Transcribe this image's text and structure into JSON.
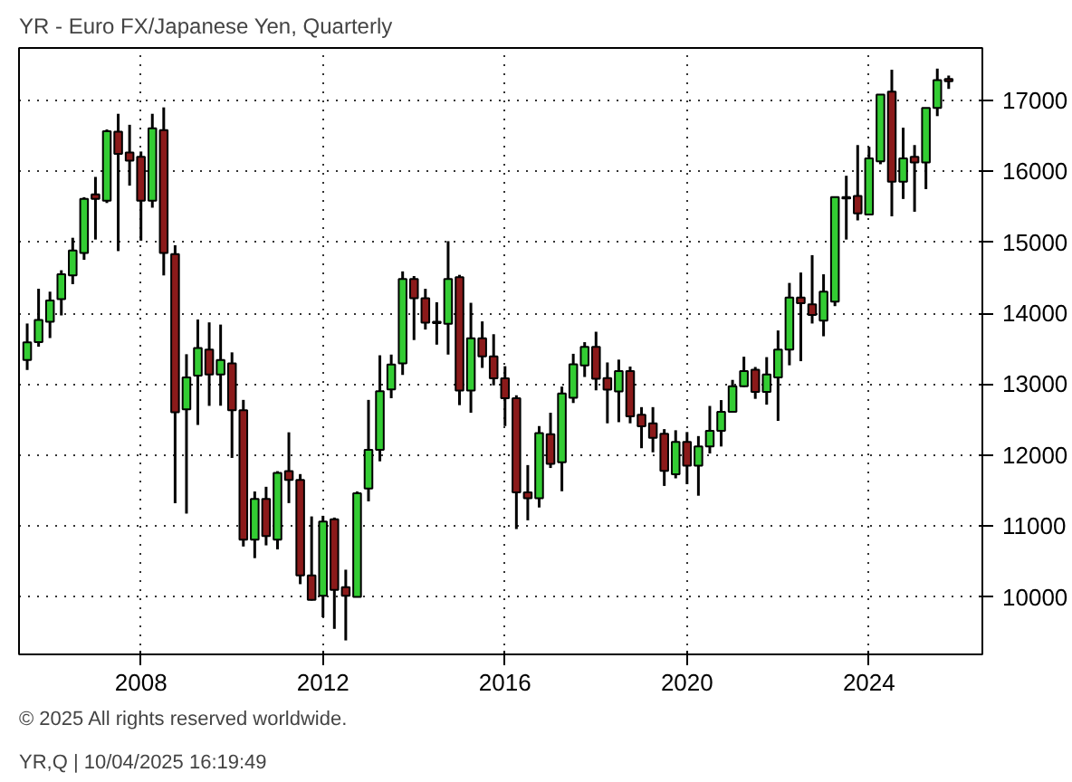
{
  "chart_data": {
    "type": "candlestick",
    "title": "YR - Euro FX/Japanese Yen, Quarterly",
    "annotations": [
      "© 2025 All rights reserved worldwide.",
      "YR,Q | 10/04/2025 16:19:49"
    ],
    "x": [
      2005.5,
      2005.75,
      2006,
      2006.25,
      2006.5,
      2006.75,
      2007,
      2007.25,
      2007.5,
      2007.75,
      2008,
      2008.25,
      2008.5,
      2008.75,
      2009,
      2009.25,
      2009.5,
      2009.75,
      2010,
      2010.25,
      2010.5,
      2010.75,
      2011,
      2011.25,
      2011.5,
      2011.75,
      2012,
      2012.25,
      2012.5,
      2012.75,
      2013,
      2013.25,
      2013.5,
      2013.75,
      2014,
      2014.25,
      2014.5,
      2014.75,
      2015,
      2015.25,
      2015.5,
      2015.75,
      2016,
      2016.25,
      2016.5,
      2016.75,
      2017,
      2017.25,
      2017.5,
      2017.75,
      2018,
      2018.25,
      2018.5,
      2018.75,
      2019,
      2019.25,
      2019.5,
      2019.75,
      2020,
      2020.25,
      2020.5,
      2020.75,
      2021,
      2021.25,
      2021.5,
      2021.75,
      2022,
      2022.25,
      2022.5,
      2022.75,
      2023,
      2023.25,
      2023.5,
      2023.75,
      2024,
      2024.25,
      2024.5,
      2024.75,
      2025,
      2025.25,
      2025.5,
      2025.75
    ],
    "ohlc": [
      [
        13340,
        13855,
        13200,
        13590
      ],
      [
        13593,
        14345,
        13528,
        13904
      ],
      [
        13879,
        14304,
        13650,
        14181
      ],
      [
        14198,
        14606,
        13969,
        14549
      ],
      [
        14533,
        15064,
        14410,
        14884
      ],
      [
        14851,
        15636,
        14753,
        15611
      ],
      [
        15676,
        15922,
        15039,
        15611
      ],
      [
        15587,
        16591,
        15554,
        16567
      ],
      [
        16559,
        16812,
        14876,
        16248
      ],
      [
        16265,
        16657,
        15799,
        16150
      ],
      [
        16207,
        16280,
        15023,
        15587
      ],
      [
        15587,
        16812,
        15488,
        16608
      ],
      [
        16583,
        16902,
        14533,
        14851
      ],
      [
        14835,
        14957,
        11322,
        12605
      ],
      [
        12646,
        13422,
        11175,
        13095
      ],
      [
        13119,
        13912,
        12425,
        13511
      ],
      [
        13487,
        13871,
        12694,
        13136
      ],
      [
        13137,
        13840,
        12696,
        13341
      ],
      [
        13292,
        13448,
        11960,
        12631
      ],
      [
        12631,
        12778,
        10711,
        10809
      ],
      [
        10809,
        11487,
        10547,
        11381
      ],
      [
        11381,
        11553,
        10727,
        10858
      ],
      [
        10809,
        11773,
        10670,
        11749
      ],
      [
        11773,
        12321,
        11323,
        11650
      ],
      [
        11650,
        11732,
        10180,
        10302
      ],
      [
        10302,
        11135,
        9950,
        9959
      ],
      [
        10016,
        11144,
        9713,
        11062
      ],
      [
        11094,
        11119,
        9550,
        10098
      ],
      [
        10139,
        10384,
        9387,
        10016
      ],
      [
        10000,
        11487,
        10000,
        11462
      ],
      [
        11528,
        12778,
        11348,
        12075
      ],
      [
        12075,
        13407,
        11912,
        12900
      ],
      [
        12925,
        13417,
        12802,
        13278
      ],
      [
        13294,
        14590,
        13130,
        14483
      ],
      [
        14483,
        14524,
        13622,
        14213
      ],
      [
        14213,
        14344,
        13770,
        13868
      ],
      [
        13880,
        14155,
        13557,
        13860
      ],
      [
        13852,
        15016,
        13417,
        14483
      ],
      [
        14508,
        14541,
        12704,
        12909
      ],
      [
        12909,
        14147,
        12597,
        13647
      ],
      [
        13647,
        13885,
        13229,
        13393
      ],
      [
        13393,
        13704,
        12983,
        13081
      ],
      [
        13081,
        13253,
        12409,
        12802
      ],
      [
        12802,
        12843,
        10957,
        11474
      ],
      [
        11474,
        11859,
        11080,
        11392
      ],
      [
        11392,
        12409,
        11261,
        12310
      ],
      [
        12294,
        12597,
        11818,
        11876
      ],
      [
        11900,
        12966,
        11490,
        12868
      ],
      [
        12807,
        13428,
        12734,
        13281
      ],
      [
        13265,
        13592,
        13101,
        13526
      ],
      [
        13526,
        13739,
        12913,
        13077
      ],
      [
        13085,
        13306,
        12448,
        12922
      ],
      [
        12897,
        13346,
        12464,
        13183
      ],
      [
        13183,
        13248,
        12448,
        12546
      ],
      [
        12570,
        12676,
        12097,
        12407
      ],
      [
        12448,
        12676,
        12039,
        12243
      ],
      [
        12301,
        12366,
        11565,
        11778
      ],
      [
        11729,
        12350,
        11672,
        12186
      ],
      [
        12186,
        12325,
        11590,
        11851
      ],
      [
        11851,
        12268,
        11427,
        12121
      ],
      [
        12121,
        12693,
        12023,
        12341
      ],
      [
        12341,
        12775,
        12121,
        12611
      ],
      [
        12611,
        13060,
        12600,
        12971
      ],
      [
        12971,
        13387,
        12960,
        13183
      ],
      [
        13204,
        13242,
        12793,
        12890
      ],
      [
        12890,
        13381,
        12711,
        13136
      ],
      [
        13095,
        13757,
        12482,
        13487
      ],
      [
        13487,
        14427,
        13266,
        14222
      ],
      [
        14222,
        14574,
        13324,
        14140
      ],
      [
        14124,
        14819,
        13855,
        13977
      ],
      [
        13896,
        14549,
        13675,
        14304
      ],
      [
        14165,
        15636,
        14100,
        15636
      ],
      [
        15620,
        15938,
        15039,
        15636
      ],
      [
        15652,
        16371,
        15309,
        15407
      ],
      [
        15391,
        16346,
        15391,
        16183
      ],
      [
        16142,
        17082,
        16101,
        17082
      ],
      [
        17123,
        17433,
        15366,
        15856
      ],
      [
        15856,
        16616,
        15611,
        16183
      ],
      [
        16207,
        16371,
        15431,
        16126
      ],
      [
        16126,
        16894,
        15750,
        16894
      ],
      [
        16894,
        17449,
        16779,
        17286
      ],
      [
        17302,
        17351,
        17163,
        17270
      ]
    ],
    "colors": [
      "#33cc33",
      "#33cc33",
      "#33cc33",
      "#33cc33",
      "#33cc33",
      "#33cc33",
      "#8b1a1a",
      "#33cc33",
      "#8b1a1a",
      "#8b1a1a",
      "#8b1a1a",
      "#33cc33",
      "#8b1a1a",
      "#8b1a1a",
      "#33cc33",
      "#33cc33",
      "#8b1a1a",
      "#33cc33",
      "#8b1a1a",
      "#8b1a1a",
      "#33cc33",
      "#8b1a1a",
      "#33cc33",
      "#8b1a1a",
      "#8b1a1a",
      "#8b1a1a",
      "#33cc33",
      "#8b1a1a",
      "#8b1a1a",
      "#33cc33",
      "#33cc33",
      "#33cc33",
      "#33cc33",
      "#33cc33",
      "#8b1a1a",
      "#8b1a1a",
      "#8b1a1a",
      "#33cc33",
      "#8b1a1a",
      "#33cc33",
      "#8b1a1a",
      "#8b1a1a",
      "#8b1a1a",
      "#8b1a1a",
      "#8b1a1a",
      "#33cc33",
      "#8b1a1a",
      "#33cc33",
      "#33cc33",
      "#33cc33",
      "#8b1a1a",
      "#8b1a1a",
      "#33cc33",
      "#8b1a1a",
      "#8b1a1a",
      "#8b1a1a",
      "#8b1a1a",
      "#33cc33",
      "#8b1a1a",
      "#33cc33",
      "#33cc33",
      "#33cc33",
      "#33cc33",
      "#33cc33",
      "#8b1a1a",
      "#33cc33",
      "#33cc33",
      "#33cc33",
      "#8b1a1a",
      "#8b1a1a",
      "#33cc33",
      "#33cc33",
      "#33cc33",
      "#8b1a1a",
      "#33cc33",
      "#33cc33",
      "#8b1a1a",
      "#33cc33",
      "#8b1a1a",
      "#33cc33",
      "#33cc33",
      "#8b1a1a"
    ],
    "xlim": [
      2005.32,
      2026.49
    ],
    "xticks": [
      2008,
      2012,
      2016,
      2020,
      2024
    ],
    "ylim": [
      9190,
      17740
    ],
    "yticks": [
      10000,
      11000,
      12000,
      13000,
      14000,
      15000,
      16000,
      17000
    ],
    "grid": true
  }
}
